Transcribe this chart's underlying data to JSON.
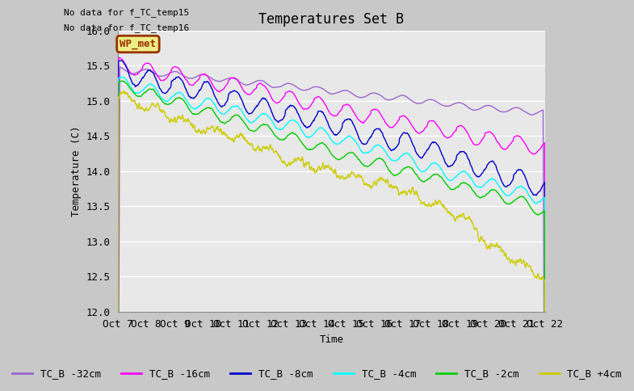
{
  "title": "Temperatures Set B",
  "xlabel": "Time",
  "ylabel": "Temperature (C)",
  "ylim": [
    12.0,
    16.0
  ],
  "yticks": [
    12.0,
    12.5,
    13.0,
    13.5,
    14.0,
    14.5,
    15.0,
    15.5,
    16.0
  ],
  "xtick_labels": [
    "Oct 7",
    "Oct 8",
    "Oct 9",
    "Oct 10",
    "Oct 11",
    "Oct 12",
    "Oct 13",
    "Oct 14",
    "Oct 15",
    "Oct 16",
    "Oct 17",
    "Oct 18",
    "Oct 19",
    "Oct 20",
    "Oct 21",
    "Oct 22"
  ],
  "n_points": 1440,
  "annotations": [
    "No data for f_TC_temp15",
    "No data for f_TC_temp16"
  ],
  "wp_met_label": "WP_met",
  "series_colors": {
    "TC_B -32cm": "#9966cc",
    "TC_B -16cm": "#ff00ff",
    "TC_B -8cm": "#0000cc",
    "TC_B -4cm": "#00ffff",
    "TC_B -2cm": "#00cc00",
    "TC_B +4cm": "#cccc00"
  },
  "series_labels": [
    "TC_B -32cm",
    "TC_B -16cm",
    "TC_B -8cm",
    "TC_B -4cm",
    "TC_B -2cm",
    "TC_B +4cm"
  ],
  "background_color": "#e8e8e8",
  "grid_color": "#ffffff",
  "title_fontsize": 12,
  "label_fontsize": 9,
  "tick_fontsize": 9,
  "legend_fontsize": 9,
  "fig_facecolor": "#c8c8c8"
}
